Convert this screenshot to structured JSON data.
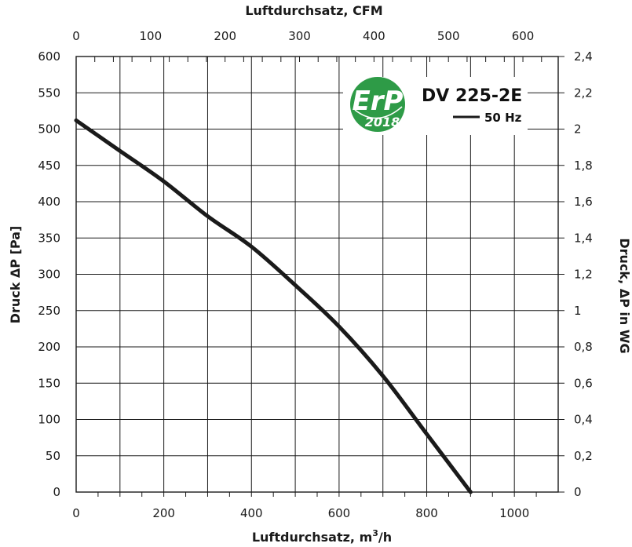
{
  "chart_data": {
    "type": "line",
    "x_label": "Luftdurchsatz, m³/h",
    "x_ticks": [
      "0",
      "200",
      "400",
      "600",
      "800",
      "1000"
    ],
    "x_range": [
      0,
      1100
    ],
    "x2_label": "Luftdurchsatz, CFM",
    "x2_ticks": [
      "0",
      "100",
      "200",
      "300",
      "400",
      "500",
      "600"
    ],
    "x2_range": [
      0,
      647.4
    ],
    "y_label": "Druck ΔP [Pa]",
    "y_ticks": [
      "0",
      "50",
      "100",
      "150",
      "200",
      "250",
      "300",
      "350",
      "400",
      "450",
      "500",
      "550",
      "600"
    ],
    "y_range": [
      0,
      600
    ],
    "y2_label": "Druck, ΔP in WG",
    "y2_ticks": [
      "0",
      "0,2",
      "0,4",
      "0,6",
      "0,8",
      "1",
      "1,2",
      "1,4",
      "1,6",
      "1,8",
      "2",
      "2,2",
      "2,4"
    ],
    "y2_range": [
      0,
      2.4
    ],
    "grid": true,
    "legend": {
      "title": "DV 225-2E",
      "placement": "top-right",
      "entries": [
        "50 Hz"
      ]
    },
    "badge": {
      "text": "ErP",
      "year": "2018",
      "color": "#2e9b47"
    },
    "series": [
      {
        "name": "50 Hz",
        "color": "#1a1a1a",
        "points": [
          [
            0,
            512
          ],
          [
            100,
            470
          ],
          [
            200,
            428
          ],
          [
            300,
            380
          ],
          [
            400,
            338
          ],
          [
            500,
            285
          ],
          [
            600,
            228
          ],
          [
            700,
            160
          ],
          [
            800,
            80
          ],
          [
            900,
            0
          ]
        ]
      }
    ]
  }
}
